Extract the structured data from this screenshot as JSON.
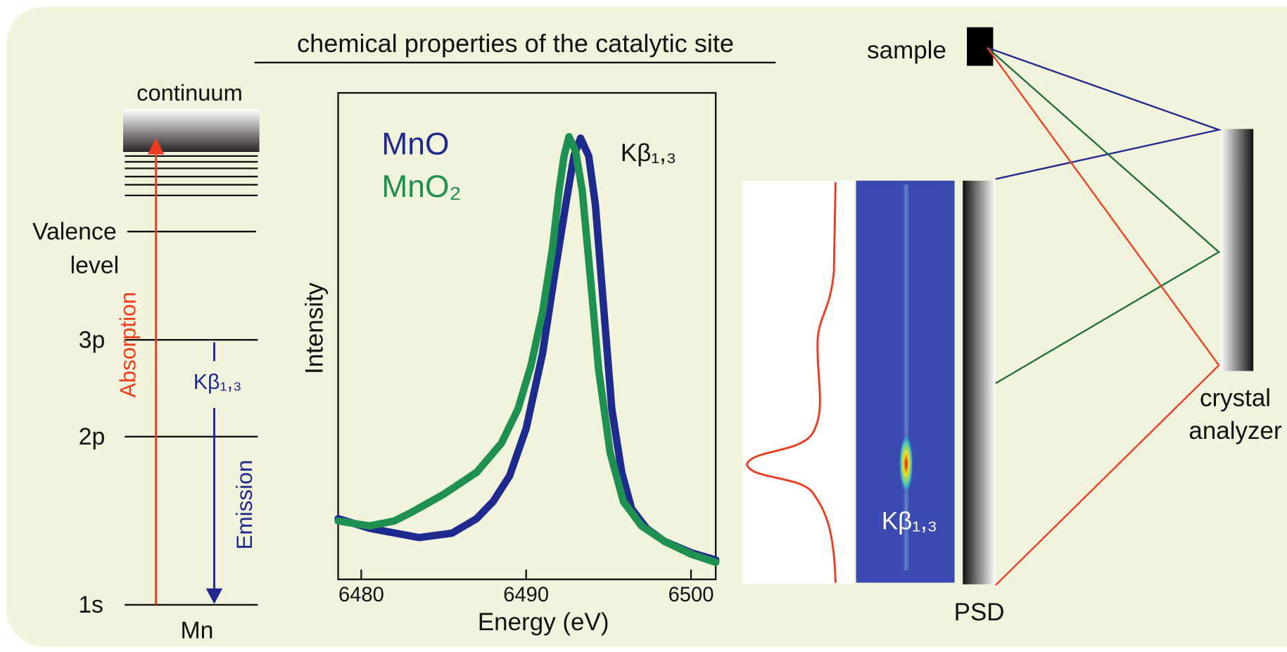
{
  "title": "chemical properties of the catalytic site",
  "energy_diagram": {
    "continuum": "continuum",
    "valence": [
      "Valence",
      "level"
    ],
    "level_3p": "3p",
    "level_2p": "2p",
    "level_1s": "1s",
    "element": "Mn",
    "absorption": "Absorption",
    "emission": "Emission",
    "transition": "Kβ₁,₃"
  },
  "chart_data": {
    "type": "line",
    "x_label": "Energy (eV)",
    "y_label": "Intensity",
    "annotation": "Kβ₁,₃",
    "xlim": [
      6478.6,
      6501.5
    ],
    "ylim": [
      0,
      1
    ],
    "xticks": [
      6480,
      6490,
      6500
    ],
    "series": [
      {
        "name": "MnO",
        "color": "#1f2a8f",
        "x": [
          6478.6,
          6480.5,
          6483.5,
          6485.5,
          6487,
          6488,
          6489,
          6490,
          6491,
          6491.7,
          6492.4,
          6492.9,
          6493.3,
          6493.8,
          6494.2,
          6494.7,
          6495.2,
          6495.8,
          6496.4,
          6497.3,
          6498.4,
          6500,
          6501.5
        ],
        "values": [
          0.125,
          0.105,
          0.086,
          0.095,
          0.125,
          0.16,
          0.213,
          0.31,
          0.465,
          0.62,
          0.77,
          0.87,
          0.907,
          0.87,
          0.77,
          0.56,
          0.35,
          0.22,
          0.145,
          0.105,
          0.078,
          0.055,
          0.04
        ]
      },
      {
        "name": "MnO₂",
        "color": "#1e9150",
        "x": [
          6478.6,
          6480.5,
          6482,
          6483,
          6485,
          6487,
          6488.5,
          6489.5,
          6490.3,
          6491,
          6491.6,
          6492,
          6492.3,
          6492.6,
          6493,
          6493.4,
          6493.9,
          6494.4,
          6495.1,
          6495.9,
          6497,
          6498.4,
          6500,
          6501.5
        ],
        "values": [
          0.12,
          0.11,
          0.12,
          0.137,
          0.175,
          0.22,
          0.28,
          0.35,
          0.44,
          0.55,
          0.68,
          0.8,
          0.87,
          0.91,
          0.88,
          0.8,
          0.62,
          0.43,
          0.26,
          0.16,
          0.11,
          0.078,
          0.052,
          0.035
        ]
      }
    ]
  },
  "detector": {
    "label": "Kβ₁,₃",
    "psd": "PSD",
    "sample": "sample",
    "analyzer": [
      "crystal",
      "analyzer"
    ]
  }
}
